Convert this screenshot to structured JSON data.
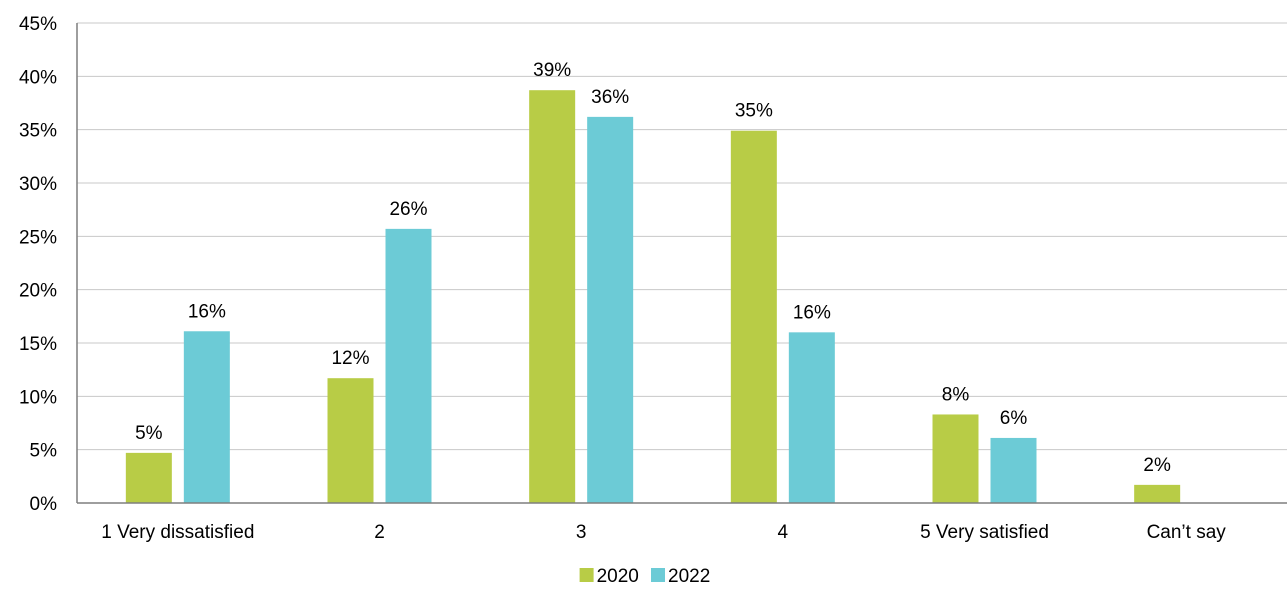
{
  "chart_data": {
    "type": "bar",
    "categories": [
      "1 Very dissatisfied",
      "2",
      "3",
      "4",
      "5 Very satisfied",
      "Can’t say"
    ],
    "series": [
      {
        "name": "2020",
        "values": [
          4.7,
          11.7,
          38.7,
          34.9,
          8.3,
          1.7
        ],
        "labels": [
          "5%",
          "12%",
          "39%",
          "35%",
          "8%",
          "2%"
        ]
      },
      {
        "name": "2022",
        "values": [
          16.1,
          25.7,
          36.2,
          16.0,
          6.1,
          null
        ],
        "labels": [
          "16%",
          "26%",
          "36%",
          "16%",
          "6%",
          null
        ]
      }
    ],
    "ylim": [
      0,
      45
    ],
    "yticks": [
      "0%",
      "5%",
      "10%",
      "15%",
      "20%",
      "25%",
      "30%",
      "35%",
      "40%",
      "45%"
    ],
    "ytick_values": [
      0,
      5,
      10,
      15,
      20,
      25,
      30,
      35,
      40,
      45
    ],
    "grid": true,
    "legend_position": "bottom-center",
    "colors": {
      "2020": "#b8cc46",
      "2022": "#6ccbd6",
      "grid": "#c8c8c8",
      "axis": "#7f7f7f"
    }
  }
}
